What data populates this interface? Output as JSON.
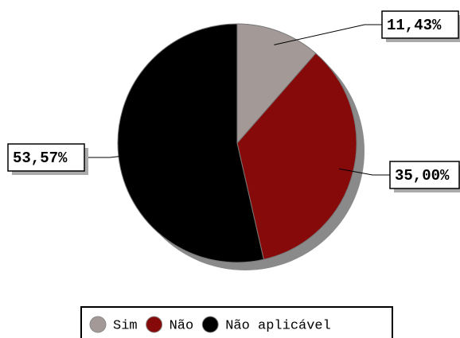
{
  "chart_data": {
    "type": "pie",
    "categories": [
      "Sim",
      "Não",
      "Não aplicável"
    ],
    "values": [
      11.43,
      35.0,
      53.57
    ],
    "value_labels": [
      "11,43%",
      "35,00%",
      "53,57%"
    ],
    "colors": [
      "#a39a98",
      "#870a0a",
      "#000000"
    ]
  }
}
